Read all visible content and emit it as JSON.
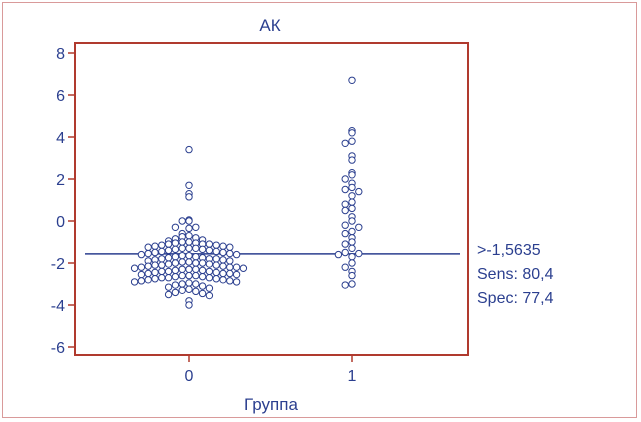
{
  "chart_data": {
    "type": "scatter",
    "title": "АК",
    "xlabel": "Группа",
    "ylabel": "",
    "categories": [
      "0",
      "1"
    ],
    "ylim": [
      -6.5,
      8.5
    ],
    "yticks": [
      -6,
      -4,
      -2,
      0,
      2,
      4,
      6,
      8
    ],
    "cutoff": -1.5635,
    "annotations": [
      ">-1,5635",
      "Sens: 80,4",
      "Spec: 77,4"
    ],
    "colors": {
      "frame": "#b03a2e",
      "text": "#2b3f8f",
      "points": "#2b3f8f",
      "cutoff_line": "#2b3f8f",
      "border": "#d99a9a"
    },
    "series": [
      {
        "category": "0",
        "values": [
          3.4,
          1.7,
          1.3,
          1.15,
          0.05,
          0.0,
          0.0,
          -0.3,
          -0.3,
          -0.35,
          -0.6,
          -0.7,
          -0.75,
          -0.8,
          -0.85,
          -0.9,
          -0.95,
          -1.0,
          -1.0,
          -1.05,
          -1.05,
          -1.1,
          -1.1,
          -1.1,
          -1.15,
          -1.15,
          -1.2,
          -1.2,
          -1.25,
          -1.25,
          -1.3,
          -1.3,
          -1.3,
          -1.35,
          -1.35,
          -1.4,
          -1.4,
          -1.45,
          -1.45,
          -1.5,
          -1.5,
          -1.55,
          -1.55,
          -1.6,
          -1.6,
          -1.65,
          -1.65,
          -1.7,
          -1.7,
          -1.75,
          -1.75,
          -1.8,
          -1.8,
          -1.8,
          -1.85,
          -1.85,
          -1.9,
          -1.9,
          -1.95,
          -1.95,
          -2.0,
          -2.0,
          -2.0,
          -2.05,
          -2.05,
          -2.1,
          -2.1,
          -2.1,
          -2.15,
          -2.15,
          -2.2,
          -2.2,
          -2.2,
          -2.25,
          -2.25,
          -2.3,
          -2.3,
          -2.3,
          -2.35,
          -2.35,
          -2.4,
          -2.4,
          -2.4,
          -2.45,
          -2.45,
          -2.5,
          -2.5,
          -2.5,
          -2.55,
          -2.55,
          -2.6,
          -2.6,
          -2.6,
          -2.65,
          -2.65,
          -2.7,
          -2.7,
          -2.7,
          -2.75,
          -2.75,
          -2.8,
          -2.8,
          -2.85,
          -2.85,
          -2.9,
          -2.9,
          -2.95,
          -3.0,
          -3.0,
          -3.05,
          -3.1,
          -3.15,
          -3.2,
          -3.25,
          -3.3,
          -3.35,
          -3.4,
          -3.45,
          -3.5,
          -3.55,
          -3.8,
          -4.0
        ]
      },
      {
        "category": "1",
        "values": [
          6.7,
          4.3,
          4.2,
          3.8,
          3.7,
          3.1,
          2.9,
          2.3,
          2.2,
          2.0,
          1.8,
          1.6,
          1.5,
          1.4,
          1.2,
          0.9,
          0.8,
          0.6,
          0.5,
          0.2,
          0.0,
          -0.2,
          -0.3,
          -0.5,
          -0.6,
          -0.8,
          -1.0,
          -1.1,
          -1.3,
          -1.5,
          -1.55,
          -1.6,
          -1.7,
          -2.0,
          -2.2,
          -2.4,
          -2.6,
          -3.0,
          -3.05
        ]
      }
    ]
  }
}
